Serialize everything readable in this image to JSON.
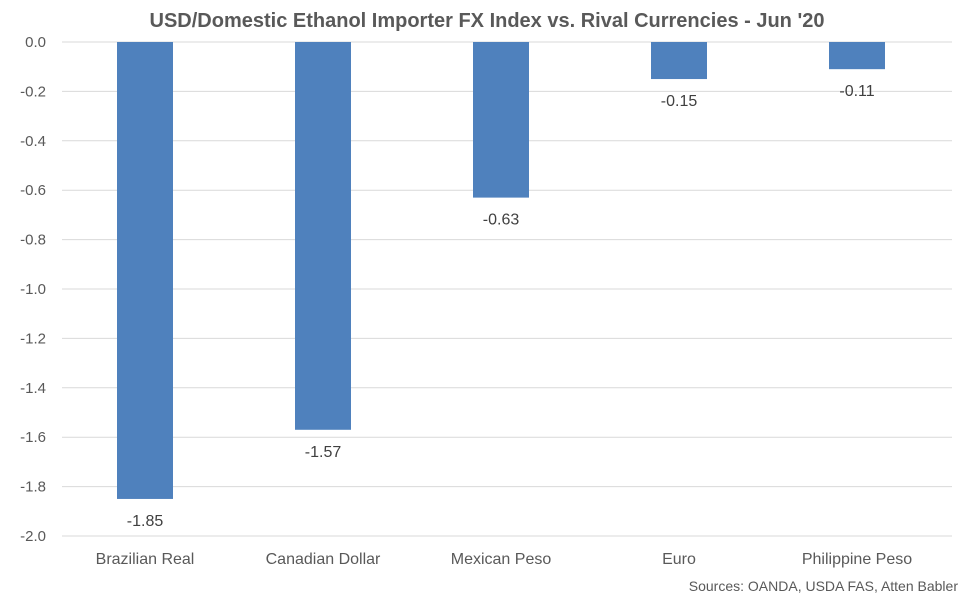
{
  "chart_data": {
    "type": "bar",
    "title": "USD/Domestic Ethanol Importer FX Index vs. Rival Currencies - Jun '20",
    "categories": [
      "Brazilian Real",
      "Canadian Dollar",
      "Mexican Peso",
      "Euro",
      "Philippine Peso"
    ],
    "values": [
      -1.85,
      -1.57,
      -0.63,
      -0.15,
      -0.11
    ],
    "data_labels": [
      "-1.85",
      "-1.57",
      "-0.63",
      "-0.15",
      "-0.11"
    ],
    "xlabel": "",
    "ylabel": "",
    "ylim": [
      -2.0,
      0.0
    ],
    "yticks": [
      0.0,
      -0.2,
      -0.4,
      -0.6,
      -0.8,
      -1.0,
      -1.2,
      -1.4,
      -1.6,
      -1.8,
      -2.0
    ],
    "ytick_labels": [
      "0.0",
      "-0.2",
      "-0.4",
      "-0.6",
      "-0.8",
      "-1.0",
      "-1.2",
      "-1.4",
      "-1.6",
      "-1.8",
      "-2.0"
    ],
    "grid": true,
    "legend": "none",
    "bar_color": "#4F81BD",
    "grid_color": "#D9D9D9",
    "source": "Sources: OANDA, USDA FAS, Atten Babler"
  }
}
